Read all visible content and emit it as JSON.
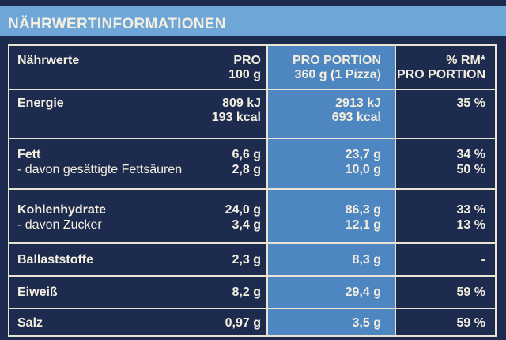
{
  "header": {
    "title": "NÄHRWERTINFORMATIONEN"
  },
  "columns": {
    "label": "Nährwerte",
    "per100_line1": "PRO",
    "per100_line2": "100 g",
    "portion_line1": "PRO PORTION",
    "portion_line2": "360 g (1 Pizza)",
    "rm_line1": "% RM*",
    "rm_line2": "PRO PORTION"
  },
  "rows": {
    "energie": {
      "label": "Energie",
      "per100_1": "809 kJ",
      "per100_2": "193 kcal",
      "portion_1": "2913 kJ",
      "portion_2": "693 kcal",
      "rm": "35 %"
    },
    "fett": {
      "label": "Fett",
      "per100": "6,6 g",
      "portion": "23,7 g",
      "rm": "34 %"
    },
    "fettsaeuren": {
      "label": "- davon gesättigte Fettsäuren",
      "per100": "2,8 g",
      "portion": "10,0 g",
      "rm": "50 %"
    },
    "kohlenhydrate": {
      "label": "Kohlenhydrate",
      "per100": "24,0 g",
      "portion": "86,3 g",
      "rm": "33 %"
    },
    "zucker": {
      "label": "- davon Zucker",
      "per100": "3,4 g",
      "portion": "12,1 g",
      "rm": "13 %"
    },
    "ballaststoffe": {
      "label": "Ballaststoffe",
      "per100": "2,3 g",
      "portion": "8,3 g",
      "rm": "-"
    },
    "eiweiss": {
      "label": "Eiweiß",
      "per100": "8,2 g",
      "portion": "29,4 g",
      "rm": "59 %"
    },
    "salz": {
      "label": "Salz",
      "per100": "0,97 g",
      "portion": "3,5 g",
      "rm": "59 %"
    }
  }
}
